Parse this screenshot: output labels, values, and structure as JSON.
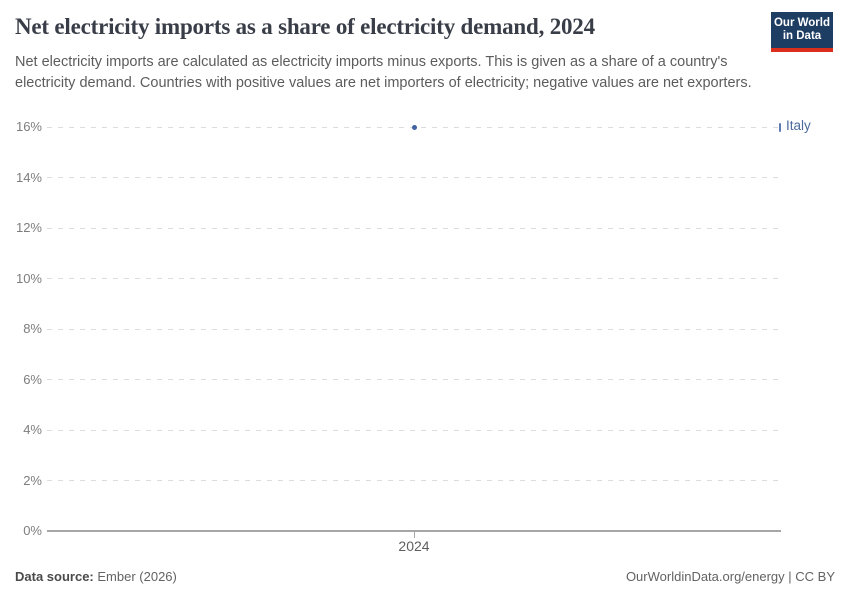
{
  "header": {
    "title": "Net electricity imports as a share of electricity demand, 2024",
    "subtitle": "Net electricity imports are calculated as electricity imports minus exports. This is given as a share of a country's electricity demand. Countries with positive values are net importers of electricity; negative values are net exporters."
  },
  "logo": {
    "line1": "Our World",
    "line2": "in Data",
    "bg_color": "#1d3d63",
    "stripe_color": "#dc2e1c"
  },
  "chart_data": {
    "type": "scatter",
    "title": "Net electricity imports as a share of electricity demand, 2024",
    "series": [
      {
        "name": "Italy",
        "color": "#4c6a9c",
        "point_color": "#4263a3",
        "points": [
          {
            "x": 2024,
            "y": 16
          }
        ]
      }
    ],
    "x_ticks": [
      "2024"
    ],
    "y_ticks": [
      0,
      2,
      4,
      6,
      8,
      10,
      12,
      14,
      16
    ],
    "y_tick_suffix": "%",
    "ylim": [
      0,
      16
    ],
    "xlabel": "",
    "ylabel": "",
    "grid": "horizontal-dashed",
    "gridline_color": "#dcdcdc",
    "entity_labels_position": "right"
  },
  "footer": {
    "source_label": "Data source:",
    "source_value": "Ember (2026)",
    "credit": "OurWorldinData.org/energy | CC BY"
  }
}
